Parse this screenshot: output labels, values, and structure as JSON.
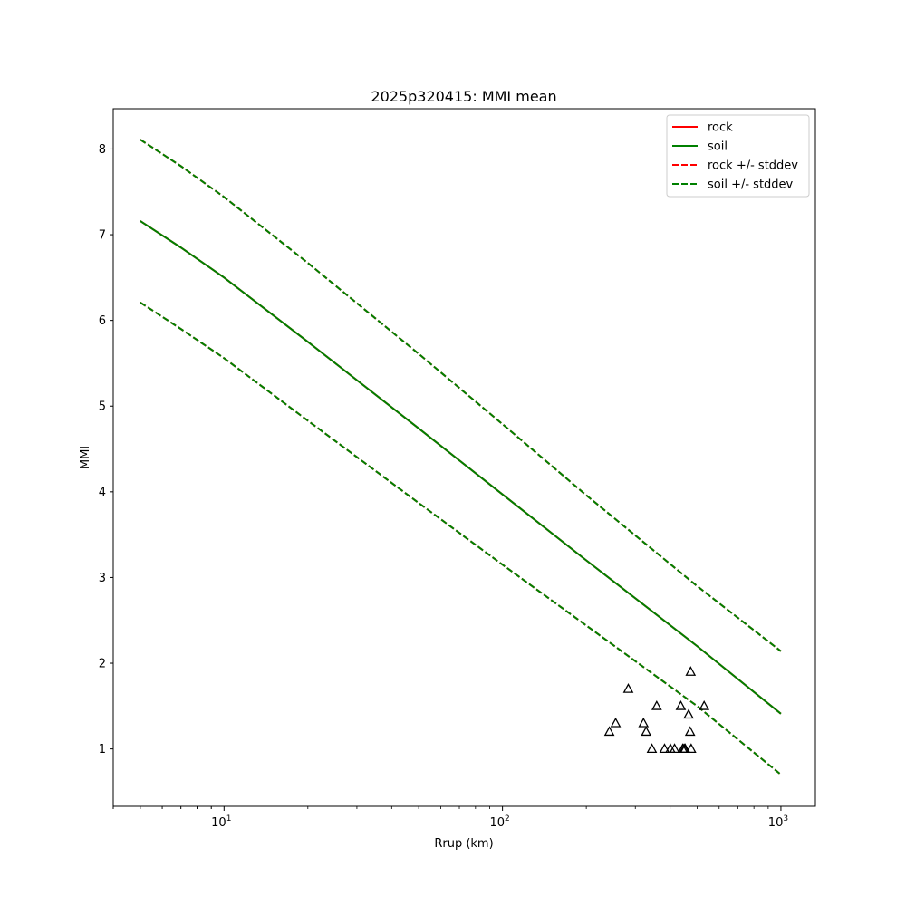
{
  "chart_data": {
    "type": "line",
    "title": "2025p320415: MMI mean",
    "xlabel": "Rrup (km)",
    "ylabel": "MMI",
    "xscale": "log",
    "xlim": [
      4,
      1330
    ],
    "ylim": [
      0.33,
      8.47
    ],
    "x_ticks": [
      {
        "value": 10,
        "base": "10",
        "exp": "1"
      },
      {
        "value": 100,
        "base": "10",
        "exp": "2"
      },
      {
        "value": 1000,
        "base": "10",
        "exp": "3"
      }
    ],
    "y_ticks": [
      1,
      2,
      3,
      4,
      5,
      6,
      7,
      8
    ],
    "grid": false,
    "legend_position": "top-right",
    "legend": [
      {
        "label": "rock",
        "color": "#ff0000",
        "style": "solid"
      },
      {
        "label": "soil",
        "color": "#008000",
        "style": "solid"
      },
      {
        "label": "rock +/- stddev",
        "color": "#ff0000",
        "style": "dashed"
      },
      {
        "label": "soil +/- stddev",
        "color": "#008000",
        "style": "dashed"
      }
    ],
    "series": [
      {
        "name": "rock",
        "color": "#ff0000",
        "style": "solid",
        "x": [
          5,
          7,
          10,
          20,
          50,
          100,
          200,
          500,
          1000
        ],
        "y": [
          7.16,
          6.85,
          6.5,
          5.75,
          4.74,
          3.97,
          3.2,
          2.2,
          1.41
        ]
      },
      {
        "name": "soil",
        "color": "#008000",
        "style": "solid",
        "x": [
          5,
          7,
          10,
          20,
          50,
          100,
          200,
          500,
          1000
        ],
        "y": [
          7.16,
          6.85,
          6.5,
          5.75,
          4.74,
          3.97,
          3.2,
          2.2,
          1.41
        ]
      },
      {
        "name": "rock +/- stddev (upper)",
        "color": "#ff0000",
        "style": "dashed",
        "x": [
          5,
          7,
          10,
          20,
          50,
          100,
          200,
          500,
          1000
        ],
        "y": [
          8.11,
          7.8,
          7.44,
          6.67,
          5.61,
          4.79,
          3.96,
          2.9,
          2.14
        ]
      },
      {
        "name": "rock +/- stddev (lower)",
        "color": "#ff0000",
        "style": "dashed",
        "x": [
          5,
          7,
          10,
          20,
          50,
          100,
          200,
          500,
          1000
        ],
        "y": [
          6.21,
          5.9,
          5.56,
          4.83,
          3.87,
          3.15,
          2.44,
          1.5,
          0.7
        ]
      },
      {
        "name": "soil +/- stddev (upper)",
        "color": "#008000",
        "style": "dashed",
        "x": [
          5,
          7,
          10,
          20,
          50,
          100,
          200,
          500,
          1000
        ],
        "y": [
          8.11,
          7.8,
          7.44,
          6.67,
          5.61,
          4.79,
          3.96,
          2.9,
          2.14
        ]
      },
      {
        "name": "soil +/- stddev (lower)",
        "color": "#008000",
        "style": "dashed",
        "x": [
          5,
          7,
          10,
          20,
          50,
          100,
          200,
          500,
          1000
        ],
        "y": [
          6.21,
          5.9,
          5.56,
          4.83,
          3.87,
          3.15,
          2.44,
          1.5,
          0.7
        ]
      }
    ],
    "observations": {
      "marker": "triangle-open",
      "color": "#000000",
      "x": [
        242,
        255,
        283,
        321,
        328,
        344,
        358,
        382,
        401,
        415,
        437,
        444,
        449,
        453,
        466,
        472,
        474,
        476,
        530
      ],
      "y": [
        1.2,
        1.3,
        1.7,
        1.3,
        1.2,
        1.0,
        1.5,
        1.0,
        1.0,
        1.0,
        1.5,
        1.0,
        1.0,
        1.0,
        1.4,
        1.2,
        1.9,
        1.0,
        1.5
      ]
    }
  }
}
